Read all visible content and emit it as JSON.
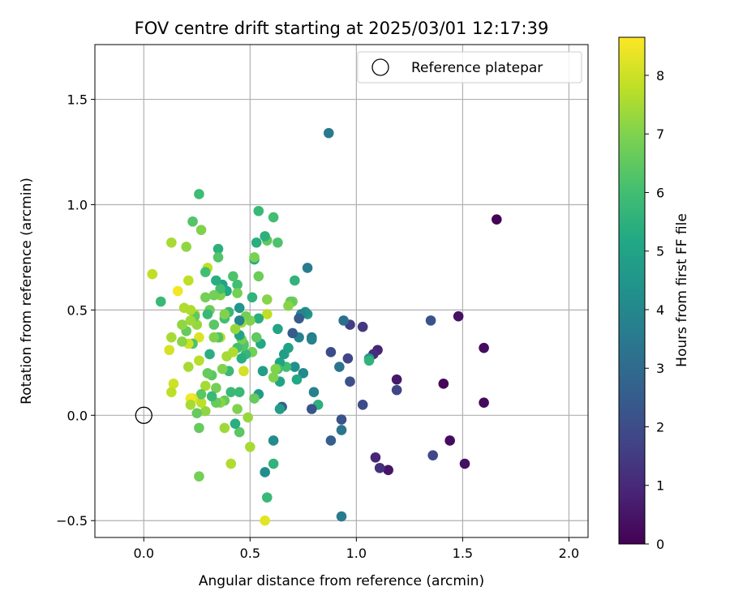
{
  "chart_data": {
    "type": "scatter",
    "title": "FOV centre drift starting at 2025/03/01 12:17:39",
    "xlabel": "Angular distance from reference (arcmin)",
    "ylabel": "Rotation from reference (arcmin)",
    "xlim": [
      -0.23,
      2.09
    ],
    "ylim": [
      -0.58,
      1.76
    ],
    "xticks": [
      0.0,
      0.5,
      1.0,
      1.5,
      2.0
    ],
    "xtick_labels": [
      "0.0",
      "0.5",
      "1.0",
      "1.5",
      "2.0"
    ],
    "yticks": [
      -0.5,
      0.0,
      0.5,
      1.0,
      1.5
    ],
    "ytick_labels": [
      "−0.5",
      "0.0",
      "0.5",
      "1.0",
      "1.5"
    ],
    "grid": true,
    "colormap": "viridis",
    "colorbar": {
      "label": "Hours from first FF file",
      "range": [
        0,
        8.65
      ],
      "ticks": [
        0,
        1,
        2,
        3,
        4,
        5,
        6,
        7,
        8
      ],
      "tick_labels": [
        "0",
        "1",
        "2",
        "3",
        "4",
        "5",
        "6",
        "7",
        "8"
      ]
    },
    "legend": {
      "placement": "top-right",
      "entries": [
        "Reference platepar"
      ]
    },
    "reference_point": {
      "x": 0.0,
      "y": 0.0,
      "label": "Reference platepar"
    },
    "series": [
      {
        "points": [
          {
            "x": 1.66,
            "y": 0.93,
            "c": 0.05
          },
          {
            "x": 1.48,
            "y": 0.47,
            "c": 0.4
          },
          {
            "x": 1.6,
            "y": 0.32,
            "c": 0.3
          },
          {
            "x": 1.6,
            "y": 0.06,
            "c": 0.2
          },
          {
            "x": 1.41,
            "y": 0.15,
            "c": 0.15
          },
          {
            "x": 1.44,
            "y": -0.12,
            "c": 0.25
          },
          {
            "x": 1.51,
            "y": -0.23,
            "c": 0.35
          },
          {
            "x": 1.36,
            "y": -0.19,
            "c": 1.9
          },
          {
            "x": 1.35,
            "y": 0.45,
            "c": 2.2
          },
          {
            "x": 1.19,
            "y": 0.17,
            "c": 0.6
          },
          {
            "x": 1.19,
            "y": 0.12,
            "c": 1.8
          },
          {
            "x": 1.15,
            "y": -0.26,
            "c": 0.5
          },
          {
            "x": 1.11,
            "y": -0.25,
            "c": 1.2
          },
          {
            "x": 1.09,
            "y": -0.2,
            "c": 0.9
          },
          {
            "x": 1.1,
            "y": 0.31,
            "c": 0.9
          },
          {
            "x": 1.08,
            "y": 0.29,
            "c": 1.1
          },
          {
            "x": 1.03,
            "y": 0.42,
            "c": 1.4
          },
          {
            "x": 1.03,
            "y": 0.05,
            "c": 2.0
          },
          {
            "x": 0.97,
            "y": 0.43,
            "c": 1.6
          },
          {
            "x": 0.96,
            "y": 0.27,
            "c": 1.8
          },
          {
            "x": 0.97,
            "y": 0.16,
            "c": 2.1
          },
          {
            "x": 0.94,
            "y": 0.45,
            "c": 3.2
          },
          {
            "x": 0.92,
            "y": 0.23,
            "c": 3.3
          },
          {
            "x": 0.93,
            "y": -0.02,
            "c": 2.2
          },
          {
            "x": 0.93,
            "y": -0.07,
            "c": 3.4
          },
          {
            "x": 0.93,
            "y": -0.48,
            "c": 3.6
          },
          {
            "x": 0.88,
            "y": 0.3,
            "c": 2.0
          },
          {
            "x": 0.88,
            "y": -0.12,
            "c": 2.6
          },
          {
            "x": 0.87,
            "y": 1.34,
            "c": 3.5
          },
          {
            "x": 1.06,
            "y": 0.27,
            "c": 4.4
          },
          {
            "x": 1.06,
            "y": 0.26,
            "c": 5.6
          },
          {
            "x": 0.82,
            "y": 0.05,
            "c": 5.5
          },
          {
            "x": 0.8,
            "y": 0.11,
            "c": 3.8
          },
          {
            "x": 0.79,
            "y": 0.03,
            "c": 2.2
          },
          {
            "x": 0.79,
            "y": 0.37,
            "c": 3.5
          },
          {
            "x": 0.79,
            "y": 0.36,
            "c": 3.8
          },
          {
            "x": 0.77,
            "y": 0.7,
            "c": 3.6
          },
          {
            "x": 0.77,
            "y": 0.48,
            "c": 4.6
          },
          {
            "x": 0.76,
            "y": 0.49,
            "c": 4.2
          },
          {
            "x": 0.75,
            "y": 0.2,
            "c": 4.0
          },
          {
            "x": 0.74,
            "y": 0.48,
            "c": 3.9
          },
          {
            "x": 0.73,
            "y": 0.46,
            "c": 2.5
          },
          {
            "x": 0.73,
            "y": 0.37,
            "c": 3.8
          },
          {
            "x": 0.72,
            "y": 0.17,
            "c": 5.2
          },
          {
            "x": 0.71,
            "y": 0.23,
            "c": 4.3
          },
          {
            "x": 0.71,
            "y": 0.64,
            "c": 5.6
          },
          {
            "x": 0.7,
            "y": 0.39,
            "c": 2.5
          },
          {
            "x": 0.7,
            "y": 0.54,
            "c": 6.8
          },
          {
            "x": 0.69,
            "y": 0.54,
            "c": 6.6
          },
          {
            "x": 0.68,
            "y": 0.52,
            "c": 7.1
          },
          {
            "x": 0.68,
            "y": 0.32,
            "c": 5.0
          },
          {
            "x": 0.67,
            "y": 0.23,
            "c": 6.0
          },
          {
            "x": 0.66,
            "y": 0.29,
            "c": 4.8
          },
          {
            "x": 0.65,
            "y": 0.04,
            "c": 2.6
          },
          {
            "x": 0.64,
            "y": 0.03,
            "c": 4.8
          },
          {
            "x": 0.64,
            "y": 0.16,
            "c": 5.0
          },
          {
            "x": 0.64,
            "y": 0.25,
            "c": 5.0
          },
          {
            "x": 0.63,
            "y": 0.41,
            "c": 5.0
          },
          {
            "x": 0.63,
            "y": 0.22,
            "c": 6.0
          },
          {
            "x": 0.63,
            "y": 0.82,
            "c": 6.2
          },
          {
            "x": 0.62,
            "y": 0.22,
            "c": 7.0
          },
          {
            "x": 0.61,
            "y": 0.94,
            "c": 6.0
          },
          {
            "x": 0.61,
            "y": -0.12,
            "c": 4.2
          },
          {
            "x": 0.61,
            "y": -0.23,
            "c": 5.6
          },
          {
            "x": 0.61,
            "y": 0.18,
            "c": 7.0
          },
          {
            "x": 0.58,
            "y": 0.55,
            "c": 7.1
          },
          {
            "x": 0.58,
            "y": 0.48,
            "c": 7.8
          },
          {
            "x": 0.58,
            "y": 0.83,
            "c": 6.5
          },
          {
            "x": 0.58,
            "y": -0.39,
            "c": 5.8
          },
          {
            "x": 0.57,
            "y": -0.5,
            "c": 8.3
          },
          {
            "x": 0.57,
            "y": 0.85,
            "c": 5.5
          },
          {
            "x": 0.57,
            "y": -0.27,
            "c": 4.2
          },
          {
            "x": 0.56,
            "y": 0.21,
            "c": 4.8
          },
          {
            "x": 0.55,
            "y": 0.34,
            "c": 5.2
          },
          {
            "x": 0.54,
            "y": 0.46,
            "c": 5.4
          },
          {
            "x": 0.54,
            "y": 0.1,
            "c": 4.7
          },
          {
            "x": 0.54,
            "y": 0.97,
            "c": 5.8
          },
          {
            "x": 0.54,
            "y": 0.66,
            "c": 6.7
          },
          {
            "x": 0.53,
            "y": 0.37,
            "c": 6.5
          },
          {
            "x": 0.53,
            "y": 0.82,
            "c": 5.4
          },
          {
            "x": 0.52,
            "y": 0.74,
            "c": 5.2
          },
          {
            "x": 0.52,
            "y": 0.75,
            "c": 6.9
          },
          {
            "x": 0.52,
            "y": 0.08,
            "c": 6.6
          },
          {
            "x": 0.51,
            "y": 0.56,
            "c": 5.6
          },
          {
            "x": 0.51,
            "y": 0.3,
            "c": 6.8
          },
          {
            "x": 0.5,
            "y": 0.45,
            "c": 7.0
          },
          {
            "x": 0.5,
            "y": -0.15,
            "c": 7.5
          },
          {
            "x": 0.49,
            "y": -0.01,
            "c": 7.3
          },
          {
            "x": 0.48,
            "y": 0.29,
            "c": 5.7
          },
          {
            "x": 0.48,
            "y": 0.47,
            "c": 6.8
          },
          {
            "x": 0.47,
            "y": 0.34,
            "c": 6.7
          },
          {
            "x": 0.47,
            "y": 0.21,
            "c": 8.1
          },
          {
            "x": 0.47,
            "y": 0.33,
            "c": 6.3
          },
          {
            "x": 0.46,
            "y": 0.44,
            "c": 7.4
          },
          {
            "x": 0.46,
            "y": 0.36,
            "c": 6.8
          },
          {
            "x": 0.46,
            "y": 0.27,
            "c": 5.4
          },
          {
            "x": 0.45,
            "y": 0.45,
            "c": 3.9
          },
          {
            "x": 0.45,
            "y": 0.38,
            "c": 7.0
          },
          {
            "x": 0.45,
            "y": 0.38,
            "c": 5.0
          },
          {
            "x": 0.45,
            "y": 0.51,
            "c": 4.5
          },
          {
            "x": 0.45,
            "y": 0.11,
            "c": 5.8
          },
          {
            "x": 0.45,
            "y": -0.08,
            "c": 6.4
          },
          {
            "x": 0.44,
            "y": 0.62,
            "c": 6.0
          },
          {
            "x": 0.44,
            "y": 0.03,
            "c": 7.0
          },
          {
            "x": 0.44,
            "y": 0.32,
            "c": 6.0
          },
          {
            "x": 0.44,
            "y": 0.58,
            "c": 6.8
          },
          {
            "x": 0.43,
            "y": -0.04,
            "c": 5.4
          },
          {
            "x": 0.43,
            "y": 0.41,
            "c": 7.3
          },
          {
            "x": 0.42,
            "y": 0.66,
            "c": 6.2
          },
          {
            "x": 0.42,
            "y": 0.3,
            "c": 7.6
          },
          {
            "x": 0.41,
            "y": 0.11,
            "c": 5.8
          },
          {
            "x": 0.41,
            "y": -0.23,
            "c": 7.6
          },
          {
            "x": 0.4,
            "y": 0.49,
            "c": 5.8
          },
          {
            "x": 0.4,
            "y": 0.21,
            "c": 5.8
          },
          {
            "x": 0.39,
            "y": 0.28,
            "c": 7.5
          },
          {
            "x": 0.39,
            "y": 0.59,
            "c": 5.2
          },
          {
            "x": 0.38,
            "y": 0.46,
            "c": 6.0
          },
          {
            "x": 0.38,
            "y": 0.48,
            "c": 7.0
          },
          {
            "x": 0.38,
            "y": -0.06,
            "c": 7.4
          },
          {
            "x": 0.38,
            "y": 0.07,
            "c": 6.6
          },
          {
            "x": 0.37,
            "y": 0.22,
            "c": 7.0
          },
          {
            "x": 0.37,
            "y": 0.62,
            "c": 5.0
          },
          {
            "x": 0.36,
            "y": 0.37,
            "c": 7.8
          },
          {
            "x": 0.36,
            "y": 0.57,
            "c": 7.0
          },
          {
            "x": 0.36,
            "y": 0.6,
            "c": 6.0
          },
          {
            "x": 0.36,
            "y": 0.06,
            "c": 7.1
          },
          {
            "x": 0.35,
            "y": 0.79,
            "c": 5.5
          },
          {
            "x": 0.35,
            "y": 0.75,
            "c": 6.3
          },
          {
            "x": 0.35,
            "y": 0.37,
            "c": 6.2
          },
          {
            "x": 0.34,
            "y": 0.13,
            "c": 6.8
          },
          {
            "x": 0.34,
            "y": 0.06,
            "c": 6.6
          },
          {
            "x": 0.34,
            "y": 0.64,
            "c": 5.4
          },
          {
            "x": 0.33,
            "y": 0.43,
            "c": 6.4
          },
          {
            "x": 0.33,
            "y": 0.57,
            "c": 6.8
          },
          {
            "x": 0.33,
            "y": 0.37,
            "c": 7.0
          },
          {
            "x": 0.32,
            "y": 0.19,
            "c": 6.4
          },
          {
            "x": 0.32,
            "y": 0.09,
            "c": 5.8
          },
          {
            "x": 0.31,
            "y": 0.5,
            "c": 6.7
          },
          {
            "x": 0.31,
            "y": 0.29,
            "c": 5.4
          },
          {
            "x": 0.3,
            "y": 0.48,
            "c": 5.8
          },
          {
            "x": 0.3,
            "y": 0.7,
            "c": 7.8
          },
          {
            "x": 0.3,
            "y": 0.2,
            "c": 6.6
          },
          {
            "x": 0.29,
            "y": 0.56,
            "c": 6.8
          },
          {
            "x": 0.29,
            "y": 0.68,
            "c": 6.0
          },
          {
            "x": 0.29,
            "y": 0.14,
            "c": 7.5
          },
          {
            "x": 0.29,
            "y": 0.02,
            "c": 7.2
          },
          {
            "x": 0.27,
            "y": 0.06,
            "c": 7.8
          },
          {
            "x": 0.27,
            "y": 0.88,
            "c": 7.0
          },
          {
            "x": 0.27,
            "y": 0.1,
            "c": 6.4
          },
          {
            "x": 0.26,
            "y": 0.26,
            "c": 7.7
          },
          {
            "x": 0.26,
            "y": 1.05,
            "c": 5.9
          },
          {
            "x": 0.26,
            "y": -0.06,
            "c": 6.6
          },
          {
            "x": 0.26,
            "y": -0.29,
            "c": 6.8
          },
          {
            "x": 0.26,
            "y": 0.37,
            "c": 8.2
          },
          {
            "x": 0.25,
            "y": 0.01,
            "c": 6.6
          },
          {
            "x": 0.25,
            "y": 0.43,
            "c": 7.3
          },
          {
            "x": 0.24,
            "y": 0.48,
            "c": 7.7
          },
          {
            "x": 0.24,
            "y": 0.47,
            "c": 6.5
          },
          {
            "x": 0.23,
            "y": 0.92,
            "c": 6.3
          },
          {
            "x": 0.23,
            "y": 0.34,
            "c": 6.2
          },
          {
            "x": 0.23,
            "y": 0.08,
            "c": 8.2
          },
          {
            "x": 0.22,
            "y": 0.08,
            "c": 8.5
          },
          {
            "x": 0.22,
            "y": 0.05,
            "c": 7.5
          },
          {
            "x": 0.22,
            "y": 0.45,
            "c": 7.4
          },
          {
            "x": 0.22,
            "y": 0.5,
            "c": 7.6
          },
          {
            "x": 0.21,
            "y": 0.34,
            "c": 8.0
          },
          {
            "x": 0.21,
            "y": 0.23,
            "c": 7.5
          },
          {
            "x": 0.21,
            "y": 0.64,
            "c": 7.8
          },
          {
            "x": 0.2,
            "y": 0.8,
            "c": 7.2
          },
          {
            "x": 0.2,
            "y": 0.4,
            "c": 6.6
          },
          {
            "x": 0.19,
            "y": 0.51,
            "c": 7.6
          },
          {
            "x": 0.18,
            "y": 0.35,
            "c": 7.1
          },
          {
            "x": 0.18,
            "y": 0.43,
            "c": 7.2
          },
          {
            "x": 0.16,
            "y": 0.59,
            "c": 8.5
          },
          {
            "x": 0.14,
            "y": 0.15,
            "c": 8.0
          },
          {
            "x": 0.13,
            "y": 0.11,
            "c": 7.8
          },
          {
            "x": 0.13,
            "y": 0.82,
            "c": 7.5
          },
          {
            "x": 0.13,
            "y": 0.37,
            "c": 7.5
          },
          {
            "x": 0.12,
            "y": 0.31,
            "c": 8.1
          },
          {
            "x": 0.08,
            "y": 0.54,
            "c": 5.8
          },
          {
            "x": 0.04,
            "y": 0.67,
            "c": 7.8
          }
        ]
      }
    ]
  }
}
